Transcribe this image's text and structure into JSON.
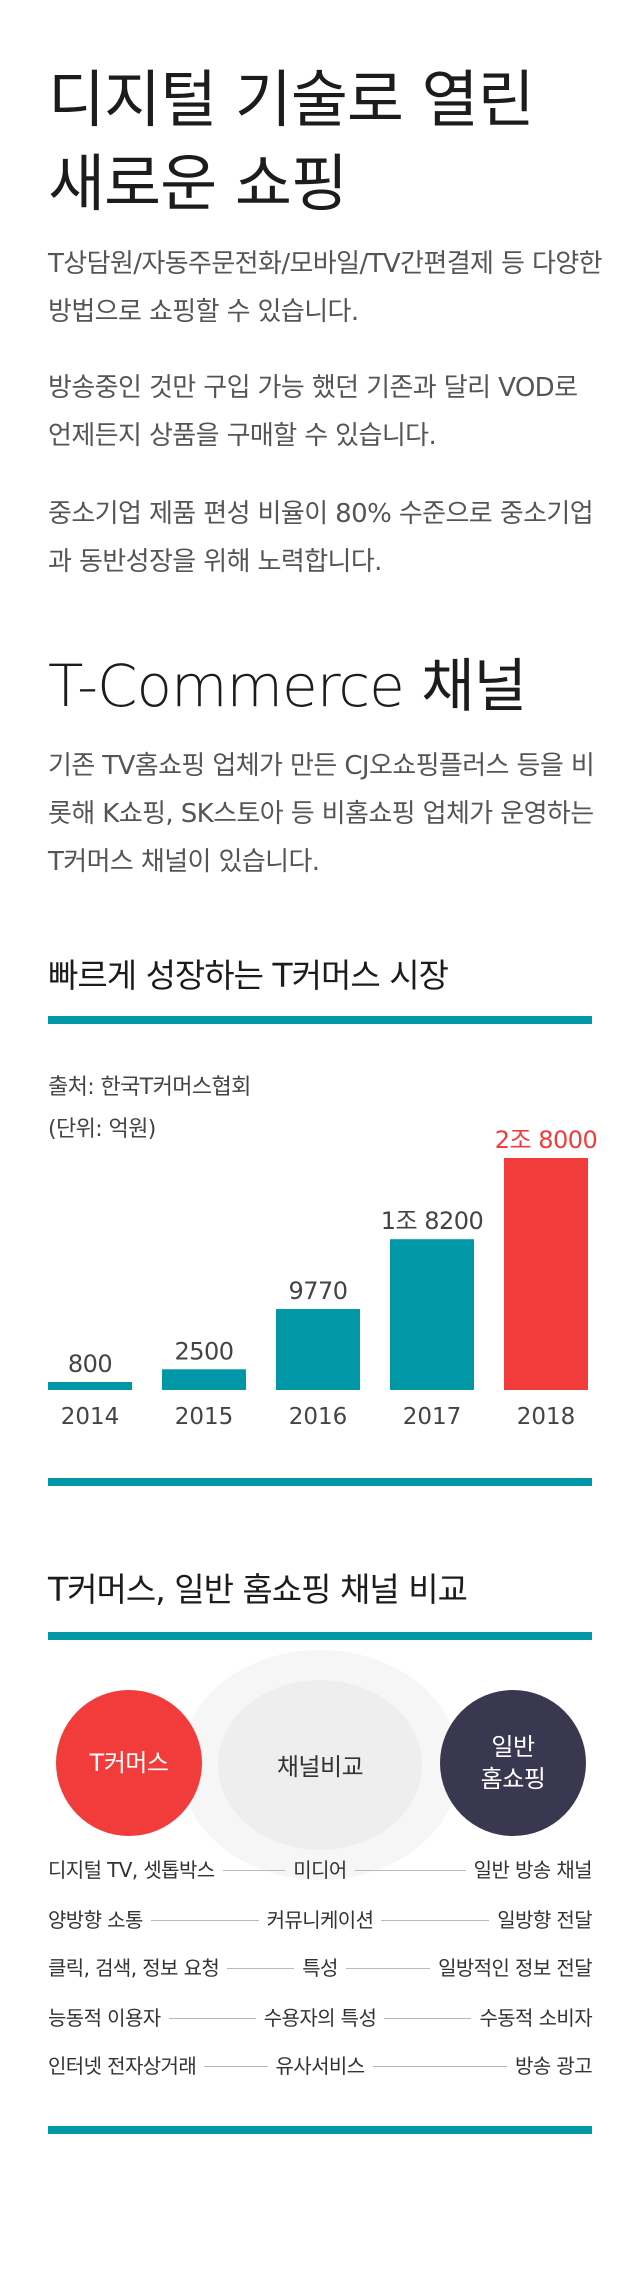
{
  "hero": {
    "title": "디지털 기술로 열린\n새로운 쇼핑",
    "para1": "T상담원/자동주문전화/모바일/TV간편결제 등 다양한 방법으로 쇼핑할 수 있습니다.",
    "para2": "방송중인 것만 구입 가능 했던 기존과 달리 VOD로 언제든지 상품을 구매할 수 있습니다.",
    "para3": "중소기업 제품 편성 비율이 80% 수준으로 중소기업과 동반성장을 위해 노력합니다."
  },
  "tcommerce": {
    "title": "T-Commerce 채널",
    "para": "기존 TV홈쇼핑 업체가 만든 CJ오쇼핑플러스 등을 비롯해 K쇼핑, SK스토아 등 비홈쇼핑 업체가 운영하는 T커머스 채널이 있습니다."
  },
  "chart_section": {
    "title": "빠르게 성장하는 T커머스 시장",
    "source": "출처: 한국T커머스협회",
    "unit": "(단위: 억원)"
  },
  "chart_data": {
    "type": "bar",
    "title": "빠르게 성장하는 T커머스 시장",
    "categories": [
      "2014",
      "2015",
      "2016",
      "2017",
      "2018"
    ],
    "values": [
      800,
      2500,
      9770,
      18200,
      28000
    ],
    "value_labels": [
      "800",
      "2500",
      "9770",
      "1조 8200",
      "2조 8000"
    ],
    "xlabel": "",
    "ylabel": "",
    "ylim": [
      0,
      28000
    ],
    "grid": false,
    "legend": "none",
    "colors": [
      "#0097a7",
      "#0097a7",
      "#0097a7",
      "#0097a7",
      "#f23c3c"
    ]
  },
  "comparison": {
    "title": "T커머스, 일반 홈쇼핑 채널 비교",
    "left_label": "T커머스",
    "center_label": "채널비교",
    "right_label": "일반\n홈쇼핑",
    "rows": [
      {
        "left": "디지털 TV, 셋톱박스",
        "criterion": "미디어",
        "right": "일반 방송 채널"
      },
      {
        "left": "양방향 소통",
        "criterion": "커뮤니케이션",
        "right": "일방향 전달"
      },
      {
        "left": "클릭, 검색, 정보 요청",
        "criterion": "특성",
        "right": "일방적인 정보 전달"
      },
      {
        "left": "능동적 이용자",
        "criterion": "수용자의 특성",
        "right": "수동적 소비자"
      },
      {
        "left": "인터넷 전자상거래",
        "criterion": "유사서비스",
        "right": "방송 광고"
      }
    ]
  },
  "colors": {
    "accent": "#0097a7",
    "highlight": "#f23c3c",
    "dark_circle": "#3a3850"
  }
}
